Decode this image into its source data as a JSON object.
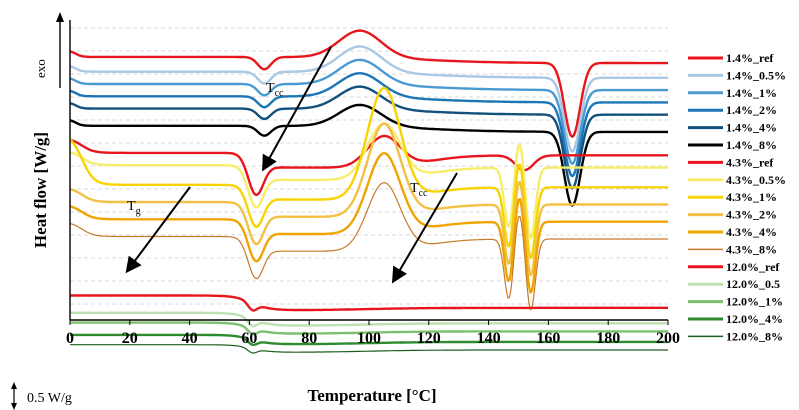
{
  "chart_data": {
    "type": "line",
    "title": "",
    "xlabel": "Temperature  [°C]",
    "ylabel": "Heat flow  [W/g]",
    "xlim": [
      0,
      200
    ],
    "xticks": [
      "0",
      "20",
      "40",
      "60",
      "80",
      "100",
      "120",
      "140",
      "160",
      "180",
      "200"
    ],
    "grid": "horizontal dashed",
    "legend_position": "right",
    "exo_label": "exo",
    "scale_bar_label": "0.5 W/g",
    "annotations": {
      "tcc_top": {
        "main": "T",
        "sub": "cc"
      },
      "tcc_mid": {
        "main": "T",
        "sub": "cc"
      },
      "tg": {
        "main": "T",
        "sub": "g"
      }
    },
    "baseline_shape": {
      "1.4": {
        "tcc": 65,
        "cryst": 97,
        "melt": 168
      },
      "4.3": {
        "tg": 62,
        "cryst": 105,
        "melt": 152
      },
      "12.0": {
        "tg": 61
      }
    },
    "series": [
      {
        "name": "1.4%_ref",
        "color": "#e8161c",
        "group": "1.4",
        "offset": 0.96
      },
      {
        "name": "1.4%_0.5%",
        "color": "#a8c8e4",
        "group": "1.4",
        "offset": 0.84
      },
      {
        "name": "1.4%_1%",
        "color": "#4a9ad2",
        "group": "1.4",
        "offset": 0.74
      },
      {
        "name": "1.4%_2%",
        "color": "#1c76b6",
        "group": "1.4",
        "offset": 0.64
      },
      {
        "name": "1.4%_4%",
        "color": "#13507e",
        "group": "1.4",
        "offset": 0.54
      },
      {
        "name": "1.4%_8%",
        "color": "#000000",
        "group": "1.4",
        "offset": 0.4
      },
      {
        "name": "4.3%_ref",
        "color": "#e8161c",
        "group": "4.3",
        "offset": 0.18
      },
      {
        "name": "4.3%_0.5%",
        "color": "#f6ee6a",
        "group": "4.3",
        "offset": 0.08
      },
      {
        "name": "4.3%_1%",
        "color": "#f7d400",
        "group": "4.3",
        "offset": -0.08
      },
      {
        "name": "4.3%_2%",
        "color": "#f2c043",
        "group": "4.3",
        "offset": -0.22
      },
      {
        "name": "4.3%_4%",
        "color": "#f0a400",
        "group": "4.3",
        "offset": -0.36
      },
      {
        "name": "4.3%_8%",
        "color": "#c77a2a",
        "group": "4.3",
        "offset": -0.5
      },
      {
        "name": "12.0%_ref",
        "color": "#e8161c",
        "group": "12.0",
        "offset": -0.98
      },
      {
        "name": "12.0%_0.5",
        "color": "#bfe0b0",
        "group": "12.0",
        "offset": -1.12
      },
      {
        "name": "12.0%_1%",
        "color": "#7cc06e",
        "group": "12.0",
        "offset": -1.2
      },
      {
        "name": "12.0%_4%",
        "color": "#2e8b2e",
        "group": "12.0",
        "offset": -1.3
      },
      {
        "name": "12.0%_8%",
        "color": "#1e5e1e",
        "group": "12.0",
        "offset": -1.38
      }
    ]
  }
}
